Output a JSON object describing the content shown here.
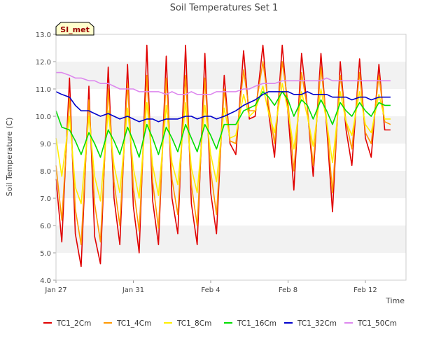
{
  "chart_data": {
    "type": "line",
    "title": "Soil Temperatures Set 1",
    "xlabel": "Time",
    "ylabel": "Soil Temperature (C)",
    "site_badge": "SI_met",
    "x_ticks": [
      "Jan 27",
      "Jan 31",
      "Feb 4",
      "Feb 8",
      "Feb 12"
    ],
    "x_tick_days": [
      0,
      4,
      8,
      12,
      16
    ],
    "xlim_days": [
      0,
      18.1
    ],
    "y_ticks": [
      "4.0",
      "5.0",
      "6.0",
      "7.0",
      "8.0",
      "9.0",
      "10.0",
      "11.0",
      "12.0",
      "13.0"
    ],
    "ylim": [
      4.0,
      13.0
    ],
    "grid": "horizontal bands",
    "legend_position": "bottom",
    "series": [
      {
        "name": "TC1_2Cm",
        "color": "#e00000",
        "x_days": [
          0.0,
          0.3,
          0.7,
          1.0,
          1.3,
          1.7,
          2.0,
          2.3,
          2.7,
          3.0,
          3.3,
          3.7,
          4.0,
          4.3,
          4.7,
          5.0,
          5.3,
          5.7,
          6.0,
          6.3,
          6.7,
          7.0,
          7.3,
          7.7,
          8.0,
          8.3,
          8.7,
          9.0,
          9.3,
          9.7,
          10.0,
          10.3,
          10.7,
          11.0,
          11.3,
          11.7,
          12.0,
          12.3,
          12.7,
          13.0,
          13.3,
          13.7,
          14.0,
          14.3,
          14.7,
          15.0,
          15.3,
          15.7,
          16.0,
          16.3,
          16.7,
          17.0,
          17.3
        ],
        "values": [
          7.7,
          5.4,
          11.4,
          5.7,
          4.5,
          11.1,
          5.6,
          4.6,
          11.8,
          7.0,
          5.3,
          11.9,
          6.7,
          5.0,
          12.6,
          6.9,
          5.3,
          12.2,
          7.0,
          5.7,
          12.6,
          6.8,
          5.3,
          12.3,
          7.2,
          5.7,
          11.5,
          9.0,
          8.6,
          12.4,
          9.9,
          10.0,
          12.6,
          10.1,
          8.5,
          12.6,
          10.1,
          7.3,
          12.3,
          10.3,
          7.8,
          12.3,
          9.6,
          6.5,
          12.0,
          9.5,
          8.2,
          12.1,
          9.2,
          8.5,
          11.9,
          9.5,
          9.5
        ]
      },
      {
        "name": "TC1_4Cm",
        "color": "#ff9900",
        "x_days": [
          0.0,
          0.3,
          0.7,
          1.0,
          1.3,
          1.7,
          2.0,
          2.3,
          2.7,
          3.0,
          3.3,
          3.7,
          4.0,
          4.3,
          4.7,
          5.0,
          5.3,
          5.7,
          6.0,
          6.3,
          6.7,
          7.0,
          7.3,
          7.7,
          8.0,
          8.3,
          8.7,
          9.0,
          9.3,
          9.7,
          10.0,
          10.3,
          10.7,
          11.0,
          11.3,
          11.7,
          12.0,
          12.3,
          12.7,
          13.0,
          13.3,
          13.7,
          14.0,
          14.3,
          14.7,
          15.0,
          15.3,
          15.7,
          16.0,
          16.3,
          16.7,
          17.0,
          17.3
        ],
        "values": [
          8.2,
          6.2,
          10.7,
          6.6,
          5.3,
          10.6,
          6.8,
          5.4,
          11.0,
          7.6,
          6.0,
          11.2,
          7.4,
          5.8,
          11.5,
          7.6,
          5.9,
          11.4,
          7.7,
          6.4,
          11.5,
          7.5,
          6.0,
          11.4,
          8.0,
          6.4,
          11.0,
          9.1,
          9.0,
          11.7,
          10.2,
          10.2,
          12.0,
          10.4,
          9.0,
          12.0,
          10.5,
          8.0,
          11.6,
          10.3,
          8.2,
          11.8,
          9.8,
          7.2,
          11.5,
          9.8,
          8.8,
          11.6,
          9.4,
          9.0,
          11.5,
          9.8,
          9.7
        ]
      },
      {
        "name": "TC1_8Cm",
        "color": "#ffee00",
        "x_days": [
          0.0,
          0.3,
          0.7,
          1.0,
          1.3,
          1.7,
          2.0,
          2.3,
          2.7,
          3.0,
          3.3,
          3.7,
          4.0,
          4.3,
          4.7,
          5.0,
          5.3,
          5.7,
          6.0,
          6.3,
          6.7,
          7.0,
          7.3,
          7.7,
          8.0,
          8.3,
          8.7,
          9.0,
          9.3,
          9.7,
          10.0,
          10.3,
          10.7,
          11.0,
          11.3,
          11.7,
          12.0,
          12.3,
          12.7,
          13.0,
          13.3,
          13.7,
          14.0,
          14.3,
          14.7,
          15.0,
          15.3,
          15.7,
          16.0,
          16.3,
          16.7,
          17.0,
          17.3
        ],
        "values": [
          9.2,
          7.8,
          10.0,
          7.4,
          6.8,
          10.0,
          7.8,
          6.9,
          10.2,
          8.2,
          7.2,
          10.3,
          8.1,
          7.0,
          10.5,
          8.2,
          7.1,
          10.4,
          8.3,
          7.5,
          10.5,
          8.1,
          7.2,
          10.4,
          8.6,
          7.6,
          10.3,
          9.2,
          9.3,
          10.8,
          10.0,
          10.2,
          11.1,
          10.1,
          9.4,
          11.2,
          10.2,
          8.8,
          10.9,
          10.0,
          8.9,
          11.0,
          9.8,
          8.3,
          10.9,
          9.8,
          9.3,
          10.9,
          9.7,
          9.4,
          10.8,
          9.9,
          9.9
        ]
      },
      {
        "name": "TC1_16Cm",
        "color": "#00dd00",
        "x_days": [
          0.0,
          0.3,
          0.7,
          1.0,
          1.3,
          1.7,
          2.0,
          2.3,
          2.7,
          3.0,
          3.3,
          3.7,
          4.0,
          4.3,
          4.7,
          5.0,
          5.3,
          5.7,
          6.0,
          6.3,
          6.7,
          7.0,
          7.3,
          7.7,
          8.0,
          8.3,
          8.7,
          9.0,
          9.3,
          9.7,
          10.0,
          10.3,
          10.7,
          11.0,
          11.3,
          11.7,
          12.0,
          12.3,
          12.7,
          13.0,
          13.3,
          13.7,
          14.0,
          14.3,
          14.7,
          15.0,
          15.3,
          15.7,
          16.0,
          16.3,
          16.7,
          17.0,
          17.3
        ],
        "values": [
          10.2,
          9.6,
          9.5,
          9.1,
          8.6,
          9.4,
          9.0,
          8.5,
          9.5,
          9.1,
          8.6,
          9.6,
          9.1,
          8.5,
          9.7,
          9.2,
          8.6,
          9.6,
          9.2,
          8.7,
          9.7,
          9.2,
          8.7,
          9.7,
          9.3,
          8.8,
          9.7,
          9.7,
          9.7,
          10.2,
          10.3,
          10.4,
          10.9,
          10.7,
          10.4,
          10.9,
          10.6,
          10.0,
          10.6,
          10.4,
          9.9,
          10.6,
          10.2,
          9.7,
          10.5,
          10.2,
          10.0,
          10.5,
          10.2,
          10.0,
          10.5,
          10.4,
          10.4
        ]
      },
      {
        "name": "TC1_32Cm",
        "color": "#0000cc",
        "x_days": [
          0.0,
          0.3,
          0.7,
          1.0,
          1.3,
          1.7,
          2.0,
          2.3,
          2.7,
          3.0,
          3.3,
          3.7,
          4.0,
          4.3,
          4.7,
          5.0,
          5.3,
          5.7,
          6.0,
          6.3,
          6.7,
          7.0,
          7.3,
          7.7,
          8.0,
          8.3,
          8.7,
          9.0,
          9.3,
          9.7,
          10.0,
          10.3,
          10.7,
          11.0,
          11.3,
          11.7,
          12.0,
          12.3,
          12.7,
          13.0,
          13.3,
          13.7,
          14.0,
          14.3,
          14.7,
          15.0,
          15.3,
          15.7,
          16.0,
          16.3,
          16.7,
          17.0,
          17.3
        ],
        "values": [
          10.9,
          10.8,
          10.7,
          10.4,
          10.2,
          10.2,
          10.1,
          10.0,
          10.1,
          10.0,
          9.9,
          10.0,
          9.9,
          9.8,
          9.9,
          9.9,
          9.8,
          9.9,
          9.9,
          9.9,
          10.0,
          10.0,
          9.9,
          10.0,
          10.0,
          9.9,
          10.0,
          10.1,
          10.2,
          10.4,
          10.5,
          10.6,
          10.8,
          10.9,
          10.9,
          10.9,
          10.9,
          10.8,
          10.8,
          10.9,
          10.8,
          10.8,
          10.8,
          10.7,
          10.7,
          10.7,
          10.6,
          10.7,
          10.7,
          10.6,
          10.7,
          10.7,
          10.7
        ]
      },
      {
        "name": "TC1_50Cm",
        "color": "#dd88ee",
        "x_days": [
          0.0,
          0.3,
          0.7,
          1.0,
          1.3,
          1.7,
          2.0,
          2.3,
          2.7,
          3.0,
          3.3,
          3.7,
          4.0,
          4.3,
          4.7,
          5.0,
          5.3,
          5.7,
          6.0,
          6.3,
          6.7,
          7.0,
          7.3,
          7.7,
          8.0,
          8.3,
          8.7,
          9.0,
          9.3,
          9.7,
          10.0,
          10.3,
          10.7,
          11.0,
          11.3,
          11.7,
          12.0,
          12.3,
          12.7,
          13.0,
          13.3,
          13.7,
          14.0,
          14.3,
          14.7,
          15.0,
          15.3,
          15.7,
          16.0,
          16.3,
          16.7,
          17.0,
          17.3
        ],
        "values": [
          11.6,
          11.6,
          11.5,
          11.4,
          11.4,
          11.3,
          11.3,
          11.2,
          11.2,
          11.1,
          11.0,
          11.0,
          11.0,
          10.9,
          10.9,
          10.9,
          10.9,
          10.8,
          10.9,
          10.8,
          10.8,
          10.9,
          10.8,
          10.8,
          10.8,
          10.9,
          10.9,
          10.9,
          10.9,
          11.0,
          11.0,
          11.1,
          11.2,
          11.2,
          11.2,
          11.3,
          11.3,
          11.3,
          11.3,
          11.3,
          11.3,
          11.3,
          11.4,
          11.3,
          11.3,
          11.3,
          11.3,
          11.3,
          11.3,
          11.3,
          11.3,
          11.3,
          11.3
        ]
      }
    ]
  }
}
